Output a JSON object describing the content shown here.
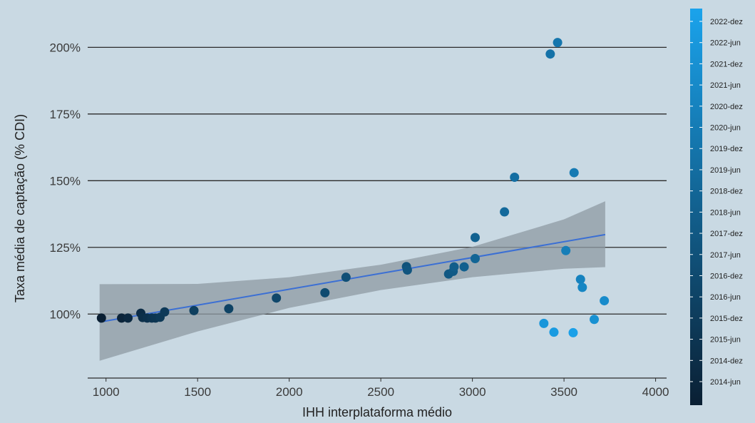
{
  "chart_data": {
    "type": "scatter",
    "title": "",
    "xlabel": "IHH interplataforma médio",
    "ylabel": "Taxa média de captação (% CDI)",
    "xlim": [
      900,
      4060
    ],
    "ylim": [
      76,
      214
    ],
    "x_ticks": [
      {
        "value": 1000,
        "label": "1000"
      },
      {
        "value": 1500,
        "label": "1500"
      },
      {
        "value": 2000,
        "label": "2000"
      },
      {
        "value": 2500,
        "label": "2500"
      },
      {
        "value": 3000,
        "label": "3000"
      },
      {
        "value": 3500,
        "label": "3500"
      },
      {
        "value": 4000,
        "label": "4000"
      }
    ],
    "y_ticks": [
      {
        "value": 100,
        "label": "100%"
      },
      {
        "value": 125,
        "label": "125%"
      },
      {
        "value": 150,
        "label": "150%"
      },
      {
        "value": 175,
        "label": "175%"
      },
      {
        "value": 200,
        "label": "200%"
      }
    ],
    "grid": "horizontal",
    "color_scale": {
      "low": "#0a1f33",
      "high": "#1aa3ec",
      "labels": [
        "2014-jun",
        "2014-dez",
        "2015-jun",
        "2015-dez",
        "2016-jun",
        "2016-dez",
        "2017-jun",
        "2017-dez",
        "2018-jun",
        "2018-dez",
        "2019-jun",
        "2019-dez",
        "2020-jun",
        "2020-dez",
        "2021-jun",
        "2021-dez",
        "2022-jun",
        "2022-dez"
      ]
    },
    "points": [
      {
        "x": 975,
        "y": 98.5,
        "c": 0.0
      },
      {
        "x": 1085,
        "y": 98.5,
        "c": 0.04
      },
      {
        "x": 1120,
        "y": 98.5,
        "c": 0.07
      },
      {
        "x": 1190,
        "y": 100.3,
        "c": 0.1
      },
      {
        "x": 1200,
        "y": 98.7,
        "c": 0.12
      },
      {
        "x": 1225,
        "y": 98.5,
        "c": 0.14
      },
      {
        "x": 1250,
        "y": 98.5,
        "c": 0.16
      },
      {
        "x": 1270,
        "y": 98.5,
        "c": 0.17
      },
      {
        "x": 1295,
        "y": 98.8,
        "c": 0.19
      },
      {
        "x": 1320,
        "y": 100.8,
        "c": 0.2
      },
      {
        "x": 1480,
        "y": 101.3,
        "c": 0.24
      },
      {
        "x": 1670,
        "y": 102.0,
        "c": 0.27
      },
      {
        "x": 1930,
        "y": 106.0,
        "c": 0.3
      },
      {
        "x": 2195,
        "y": 108.0,
        "c": 0.33
      },
      {
        "x": 2310,
        "y": 113.8,
        "c": 0.36
      },
      {
        "x": 2640,
        "y": 117.8,
        "c": 0.39
      },
      {
        "x": 2645,
        "y": 116.5,
        "c": 0.41
      },
      {
        "x": 2870,
        "y": 115.0,
        "c": 0.43
      },
      {
        "x": 2895,
        "y": 116.0,
        "c": 0.45
      },
      {
        "x": 2900,
        "y": 117.7,
        "c": 0.47
      },
      {
        "x": 2955,
        "y": 117.7,
        "c": 0.49
      },
      {
        "x": 3015,
        "y": 128.7,
        "c": 0.51
      },
      {
        "x": 3015,
        "y": 120.8,
        "c": 0.53
      },
      {
        "x": 3175,
        "y": 138.3,
        "c": 0.56
      },
      {
        "x": 3230,
        "y": 151.3,
        "c": 0.6
      },
      {
        "x": 3425,
        "y": 197.5,
        "c": 0.63
      },
      {
        "x": 3465,
        "y": 201.8,
        "c": 0.66
      },
      {
        "x": 3555,
        "y": 153.0,
        "c": 0.69
      },
      {
        "x": 3510,
        "y": 123.8,
        "c": 0.72
      },
      {
        "x": 3590,
        "y": 113.0,
        "c": 0.75
      },
      {
        "x": 3600,
        "y": 110.0,
        "c": 0.78
      },
      {
        "x": 3720,
        "y": 105.0,
        "c": 0.82
      },
      {
        "x": 3665,
        "y": 98.0,
        "c": 0.86
      },
      {
        "x": 3390,
        "y": 96.5,
        "c": 0.9
      },
      {
        "x": 3445,
        "y": 93.2,
        "c": 0.94
      },
      {
        "x": 3550,
        "y": 93.0,
        "c": 0.98
      }
    ],
    "fit_line": {
      "x": [
        965,
        3725
      ],
      "y": [
        97.0,
        129.8
      ],
      "color": "#3b6fd4"
    },
    "confidence_band": {
      "x": [
        965,
        1500,
        2000,
        2500,
        3000,
        3500,
        3725
      ],
      "upper": [
        111.2,
        111.3,
        113.8,
        118.5,
        125.2,
        135.5,
        142.3
      ],
      "lower": [
        82.5,
        93.5,
        102.3,
        109.0,
        113.8,
        117.0,
        117.6
      ],
      "color": "#8e9aa3"
    }
  }
}
